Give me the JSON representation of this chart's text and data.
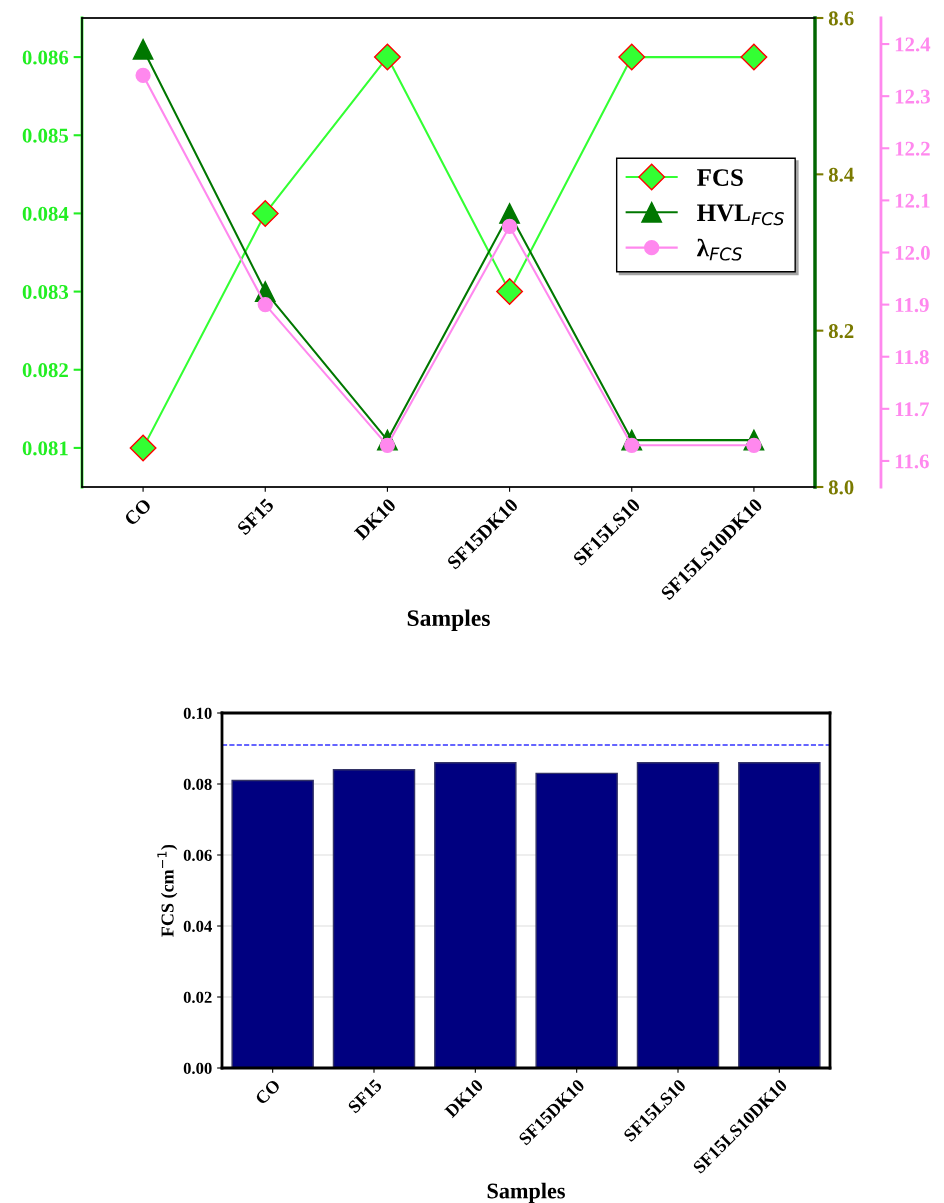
{
  "chart_data": [
    {
      "type": "line",
      "xlabel": "Samples",
      "categories": [
        "CO",
        "SF15",
        "DK10",
        "SF15DK10",
        "SF15LS10",
        "SF15LS10DK10"
      ],
      "series": [
        {
          "name": "FCS",
          "color": "#33ff33",
          "values": [
            0.081,
            0.084,
            0.086,
            0.083,
            0.086,
            0.086
          ],
          "marker": "diamond"
        },
        {
          "name": "HVL$_{FCS}$",
          "color": "#007700",
          "values": [
            8.56,
            8.25,
            8.06,
            8.35,
            8.06,
            8.06
          ],
          "marker": "triangle",
          "axis": "y2"
        },
        {
          "name": "λ$_{FCS}$",
          "color": "#ff88ee",
          "values": [
            12.34,
            11.9,
            11.63,
            12.05,
            11.63,
            11.63
          ],
          "marker": "circle",
          "axis": "y3"
        }
      ],
      "ylim": [
        0.0805,
        0.0865
      ],
      "yticks": [
        0.081,
        0.082,
        0.083,
        0.084,
        0.085,
        0.086
      ],
      "y2lim": [
        8.0,
        8.6
      ],
      "y2ticks": [
        {
          "value": 8.0,
          "label": "8.0"
        },
        8.2,
        8.4,
        8.6
      ],
      "y3lim": [
        11.55,
        12.45
      ],
      "y3ticks": [
        11.6,
        11.7,
        11.8,
        11.9,
        {
          "value": 12.0,
          "label": "12.0"
        },
        12.1,
        12.2,
        12.3,
        12.4
      ],
      "legend": "right",
      "grid": false,
      "line_style": "solid"
    },
    {
      "type": "bar",
      "xlabel": "Samples",
      "ylabel": "FCS (cm$^{−1}$)",
      "categories": [
        "CO",
        "SF15",
        "DK10",
        "SF15DK10",
        "SF15LS10",
        "SF15LS10DK10"
      ],
      "values": [
        0.081,
        0.084,
        0.086,
        0.083,
        0.086,
        0.086
      ],
      "color": "#000080",
      "ylim": [
        0,
        0.1
      ],
      "yticks": [
        {
          "value": 0,
          "label": "0.00"
        },
        0.02,
        0.04,
        0.06,
        0.08,
        {
          "value": 0.1,
          "label": "0.10"
        }
      ],
      "ref_lines": [
        {
          "axis": "y",
          "value": 0.091,
          "color": "#3333ff",
          "line_style": "dashed"
        }
      ],
      "grid": "y",
      "legend": false
    }
  ]
}
